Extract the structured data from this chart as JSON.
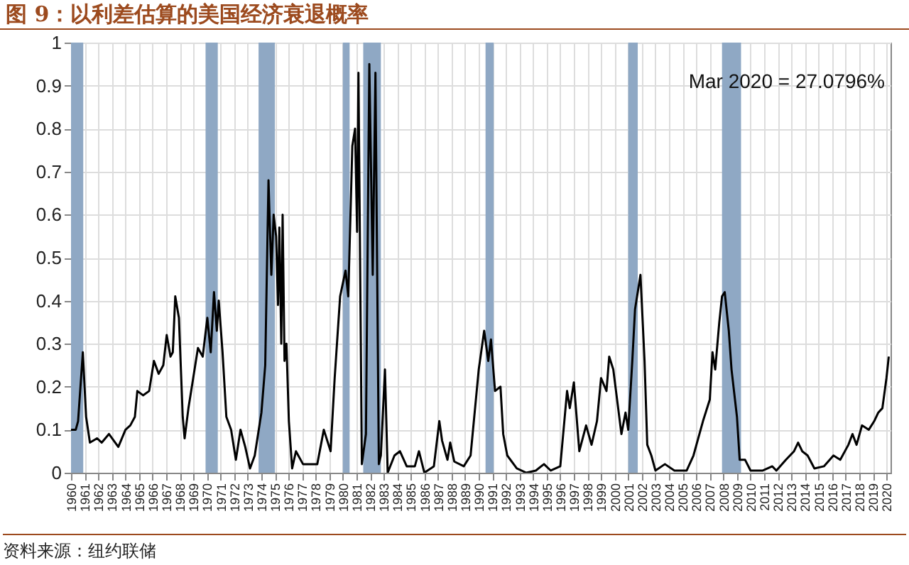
{
  "chart_data": {
    "type": "line",
    "title": "图 9：以利差估算的美国经济衰退概率",
    "annotations": [
      "Mar 2020 = 27.0796%",
      "资料来源：纽约联储"
    ],
    "x": [
      1960.0,
      1960.35,
      1960.52,
      1960.87,
      1961.11,
      1961.39,
      1961.92,
      1962.26,
      1962.79,
      1963.48,
      1964.01,
      1964.36,
      1964.7,
      1964.88,
      1965.3,
      1965.75,
      1966.1,
      1966.45,
      1966.79,
      1967.04,
      1967.32,
      1967.49,
      1967.67,
      1967.94,
      1968.22,
      1968.36,
      1968.64,
      1968.99,
      1969.34,
      1969.69,
      1970.03,
      1970.28,
      1970.52,
      1970.73,
      1970.87,
      1971.15,
      1971.43,
      1971.78,
      1972.13,
      1972.47,
      1972.82,
      1973.17,
      1973.52,
      1974.01,
      1974.29,
      1974.53,
      1974.74,
      1974.91,
      1975.09,
      1975.23,
      1975.33,
      1975.47,
      1975.57,
      1975.71,
      1975.85,
      1976.03,
      1976.27,
      1976.55,
      1977.07,
      1978.12,
      1978.6,
      1979.1,
      1979.4,
      1979.8,
      1980.2,
      1980.4,
      1980.7,
      1980.9,
      1981.05,
      1981.15,
      1981.4,
      1981.7,
      1981.95,
      1982.2,
      1982.4,
      1982.65,
      1982.8,
      1983.1,
      1983.3,
      1983.8,
      1984.2,
      1984.7,
      1985.3,
      1985.6,
      1986.0,
      1986.7,
      1987.1,
      1987.3,
      1987.7,
      1987.9,
      1988.2,
      1988.9,
      1989.4,
      1990.0,
      1990.4,
      1990.7,
      1990.9,
      1991.2,
      1991.6,
      1991.8,
      1992.1,
      1992.8,
      1993.5,
      1994.2,
      1994.8,
      1995.3,
      1996.0,
      1996.5,
      1996.7,
      1997.0,
      1997.4,
      1997.9,
      1998.3,
      1998.7,
      1999.0,
      1999.4,
      1999.6,
      1999.9,
      2000.1,
      2000.5,
      2000.8,
      2001.0,
      2001.3,
      2001.5,
      2001.9,
      2002.2,
      2002.4,
      2002.7,
      2003.0,
      2003.7,
      2004.4,
      2005.3,
      2005.8,
      2006.5,
      2007.0,
      2007.2,
      2007.4,
      2007.7,
      2007.9,
      2008.1,
      2008.4,
      2008.6,
      2009.0,
      2009.2,
      2009.6,
      2010.0,
      2010.9,
      2011.6,
      2011.9,
      2012.6,
      2013.2,
      2013.5,
      2013.8,
      2014.2,
      2014.7,
      2015.4,
      2016.1,
      2016.6,
      2017.2,
      2017.5,
      2017.8,
      2018.2,
      2018.7,
      2019.1,
      2019.4,
      2019.7,
      2020.0,
      2020.17
    ],
    "series": [
      {
        "color": "#000000",
        "values": [
          0.1,
          0.1,
          0.12,
          0.28,
          0.13,
          0.07,
          0.08,
          0.07,
          0.09,
          0.06,
          0.1,
          0.11,
          0.13,
          0.19,
          0.18,
          0.19,
          0.26,
          0.23,
          0.25,
          0.32,
          0.27,
          0.28,
          0.41,
          0.36,
          0.13,
          0.08,
          0.15,
          0.22,
          0.29,
          0.27,
          0.36,
          0.28,
          0.42,
          0.33,
          0.4,
          0.28,
          0.13,
          0.1,
          0.03,
          0.1,
          0.06,
          0.01,
          0.04,
          0.14,
          0.25,
          0.68,
          0.46,
          0.6,
          0.55,
          0.39,
          0.57,
          0.3,
          0.6,
          0.26,
          0.3,
          0.12,
          0.01,
          0.05,
          0.02,
          0.02,
          0.1,
          0.05,
          0.22,
          0.41,
          0.47,
          0.41,
          0.76,
          0.8,
          0.56,
          0.93,
          0.02,
          0.09,
          0.95,
          0.46,
          0.93,
          0.02,
          0.04,
          0.24,
          0.0,
          0.04,
          0.05,
          0.015,
          0.015,
          0.05,
          0.0,
          0.015,
          0.12,
          0.075,
          0.03,
          0.07,
          0.026,
          0.015,
          0.04,
          0.24,
          0.33,
          0.26,
          0.31,
          0.19,
          0.2,
          0.09,
          0.04,
          0.01,
          0.0,
          0.005,
          0.02,
          0.005,
          0.015,
          0.19,
          0.15,
          0.21,
          0.05,
          0.11,
          0.065,
          0.12,
          0.22,
          0.19,
          0.27,
          0.24,
          0.19,
          0.09,
          0.14,
          0.1,
          0.26,
          0.38,
          0.46,
          0.26,
          0.065,
          0.04,
          0.005,
          0.02,
          0.005,
          0.005,
          0.04,
          0.12,
          0.17,
          0.28,
          0.24,
          0.35,
          0.41,
          0.42,
          0.33,
          0.24,
          0.13,
          0.03,
          0.03,
          0.005,
          0.005,
          0.015,
          0.005,
          0.03,
          0.05,
          0.07,
          0.05,
          0.04,
          0.01,
          0.015,
          0.04,
          0.03,
          0.065,
          0.09,
          0.065,
          0.11,
          0.1,
          0.12,
          0.14,
          0.15,
          0.22,
          0.27
        ]
      }
    ],
    "xlim": [
      1960,
      2020.3
    ],
    "ylim": [
      0,
      1
    ],
    "xticks": [
      1960,
      1961,
      1962,
      1963,
      1964,
      1965,
      1966,
      1967,
      1968,
      1969,
      1970,
      1971,
      1972,
      1973,
      1974,
      1975,
      1976,
      1977,
      1978,
      1979,
      1980,
      1981,
      1982,
      1983,
      1984,
      1985,
      1986,
      1987,
      1988,
      1989,
      1990,
      1991,
      1992,
      1993,
      1994,
      1995,
      1996,
      1997,
      1998,
      1999,
      2000,
      2001,
      2002,
      2003,
      2004,
      2005,
      2006,
      2007,
      2008,
      2009,
      2010,
      2011,
      2012,
      2013,
      2014,
      2015,
      2016,
      2017,
      2018,
      2019,
      2020
    ],
    "yticks": [
      0,
      0.1,
      0.2,
      0.3,
      0.4,
      0.5,
      0.6,
      0.7,
      0.8,
      0.9,
      1
    ],
    "grid": true,
    "bands": [
      {
        "axis": "x",
        "from": 1960.0,
        "to": 1960.9,
        "color": "#8fa8c4"
      },
      {
        "axis": "x",
        "from": 1969.9,
        "to": 1970.8,
        "color": "#8fa8c4"
      },
      {
        "axis": "x",
        "from": 1973.8,
        "to": 1975.0,
        "color": "#8fa8c4"
      },
      {
        "axis": "x",
        "from": 1980.0,
        "to": 1980.5,
        "color": "#8fa8c4"
      },
      {
        "axis": "x",
        "from": 1981.5,
        "to": 1982.8,
        "color": "#8fa8c4"
      },
      {
        "axis": "x",
        "from": 1990.5,
        "to": 1991.1,
        "color": "#8fa8c4"
      },
      {
        "axis": "x",
        "from": 2001.0,
        "to": 2001.7,
        "color": "#8fa8c4"
      },
      {
        "axis": "x",
        "from": 2007.9,
        "to": 2009.3,
        "color": "#8fa8c4"
      }
    ]
  }
}
